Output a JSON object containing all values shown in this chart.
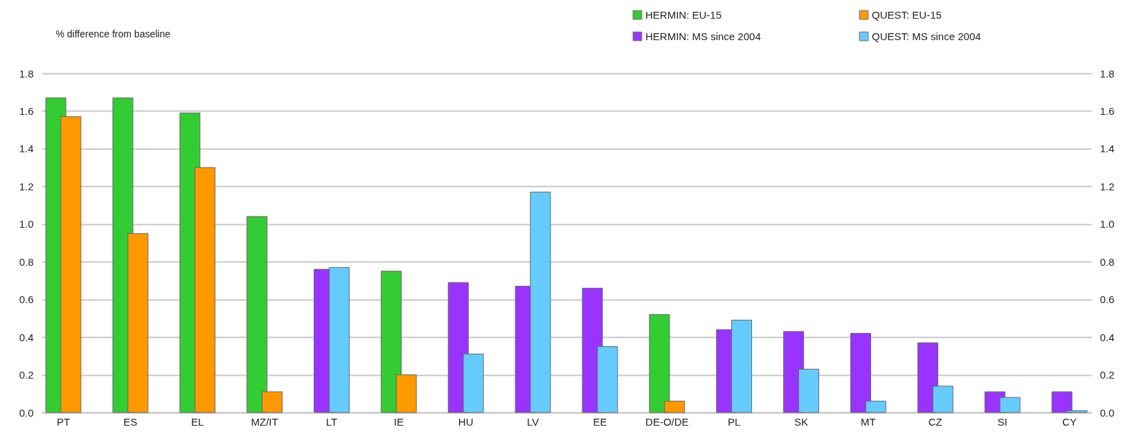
{
  "chart_data": {
    "type": "bar",
    "ylabel": "% difference from baseline",
    "categories": [
      "PT",
      "ES",
      "EL",
      "MZ/IT",
      "LT",
      "IE",
      "HU",
      "LV",
      "EE",
      "DE-O/DE",
      "PL",
      "SK",
      "MT",
      "CZ",
      "SI",
      "CY"
    ],
    "series": [
      {
        "name": "HERMIN: EU-15",
        "color": "#33cc33",
        "values": [
          1.67,
          1.67,
          1.59,
          1.04,
          null,
          0.75,
          null,
          null,
          null,
          0.52,
          null,
          null,
          null,
          null,
          null,
          null
        ]
      },
      {
        "name": "QUEST: EU-15",
        "color": "#ff9900",
        "values": [
          1.57,
          0.95,
          1.3,
          0.11,
          null,
          0.2,
          null,
          null,
          null,
          0.06,
          null,
          null,
          null,
          null,
          null,
          null
        ]
      },
      {
        "name": "HERMIN: MS since 2004",
        "color": "#9933ff",
        "values": [
          null,
          null,
          null,
          null,
          0.76,
          null,
          0.69,
          0.67,
          0.66,
          null,
          0.44,
          0.43,
          0.42,
          0.37,
          0.11,
          0.11
        ]
      },
      {
        "name": "QUEST: MS since 2004",
        "color": "#66ccff",
        "values": [
          null,
          null,
          null,
          null,
          0.77,
          null,
          0.31,
          1.17,
          0.35,
          null,
          0.49,
          0.23,
          0.06,
          0.14,
          0.08,
          0.01
        ]
      }
    ],
    "ylim": [
      0,
      1.8
    ],
    "yticks": [
      {
        "value": 0,
        "label": "0.0"
      },
      0.2,
      0.4,
      0.6,
      0.8,
      {
        "value": 1,
        "label": "1.0"
      },
      1.2,
      1.4,
      1.6,
      1.8
    ],
    "y2lim": [
      0,
      1.8
    ],
    "y2ticks": [
      {
        "value": 0,
        "label": "0.0"
      },
      0.2,
      0.4,
      0.6,
      0.8,
      {
        "value": 1,
        "label": "1.0"
      },
      1.2,
      1.4,
      1.6,
      1.8
    ],
    "grid": true,
    "legend": "top right"
  }
}
